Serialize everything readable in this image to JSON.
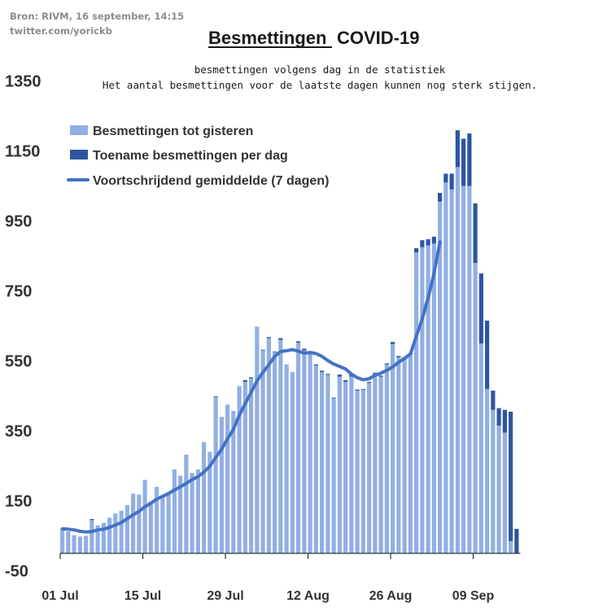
{
  "source": {
    "line1": "Bron: RIVM, 16 september, 14:15",
    "line2": "twitter.com/yorickb"
  },
  "chart_data": {
    "type": "bar",
    "title_part1": "Besmettingen",
    "title_part2": "COVID-19",
    "subtitle_line1": "besmettingen  volgens dag in de statistiek",
    "subtitle_line2": "Het aantal besmettingen  voor de laatste dagen kunnen nog sterk stijgen.",
    "ylim": [
      -50,
      1350
    ],
    "yticks": [
      -50,
      150,
      350,
      550,
      750,
      950,
      1150,
      1350
    ],
    "xticks": [
      {
        "label": "01 Jul",
        "index": 0
      },
      {
        "label": "15 Jul",
        "index": 14
      },
      {
        "label": "29 Jul",
        "index": 28
      },
      {
        "label": "12 Aug",
        "index": 42
      },
      {
        "label": "26 Aug",
        "index": 56
      },
      {
        "label": "09 Sep",
        "index": 70
      }
    ],
    "dates": [
      "01 Jul",
      "02 Jul",
      "03 Jul",
      "04 Jul",
      "05 Jul",
      "06 Jul",
      "07 Jul",
      "08 Jul",
      "09 Jul",
      "10 Jul",
      "11 Jul",
      "12 Jul",
      "13 Jul",
      "14 Jul",
      "15 Jul",
      "16 Jul",
      "17 Jul",
      "18 Jul",
      "19 Jul",
      "20 Jul",
      "21 Jul",
      "22 Jul",
      "23 Jul",
      "24 Jul",
      "25 Jul",
      "26 Jul",
      "27 Jul",
      "28 Jul",
      "29 Jul",
      "30 Jul",
      "31 Jul",
      "01 Aug",
      "02 Aug",
      "03 Aug",
      "04 Aug",
      "05 Aug",
      "06 Aug",
      "07 Aug",
      "08 Aug",
      "09 Aug",
      "10 Aug",
      "11 Aug",
      "12 Aug",
      "13 Aug",
      "14 Aug",
      "15 Aug",
      "16 Aug",
      "17 Aug",
      "18 Aug",
      "19 Aug",
      "20 Aug",
      "21 Aug",
      "22 Aug",
      "23 Aug",
      "24 Aug",
      "25 Aug",
      "26 Aug",
      "27 Aug",
      "28 Aug",
      "29 Aug",
      "30 Aug",
      "31 Aug",
      "01 Sep",
      "02 Sep",
      "03 Sep",
      "04 Sep",
      "05 Sep",
      "06 Sep",
      "07 Sep",
      "08 Sep",
      "09 Sep",
      "10 Sep",
      "11 Sep",
      "12 Sep",
      "13 Sep",
      "14 Sep",
      "15 Sep",
      "16 Sep"
    ],
    "series": [
      {
        "name": "Besmettingen tot gisteren",
        "color": "#92afe3",
        "values": [
          68,
          63,
          52,
          48,
          50,
          95,
          80,
          87,
          102,
          114,
          122,
          138,
          171,
          168,
          210,
          148,
          190,
          165,
          170,
          240,
          222,
          282,
          230,
          240,
          318,
          290,
          447,
          390,
          425,
          407,
          478,
          490,
          500,
          648,
          580,
          615,
          575,
          610,
          540,
          518,
          602,
          580,
          575,
          537,
          518,
          510,
          443,
          505,
          490,
          505,
          465,
          468,
          487,
          512,
          505,
          540,
          598,
          560,
          558,
          570,
          860,
          875,
          880,
          885,
          1005,
          1060,
          1040,
          1104,
          1050,
          1050,
          830,
          600,
          470,
          410,
          365,
          345,
          35,
          0
        ],
        "color_key": "light"
      },
      {
        "name": "Toename besmettingen per dag",
        "color": "#2e56a0",
        "values": [
          1,
          0,
          0,
          0,
          0,
          3,
          0,
          0,
          0,
          0,
          0,
          0,
          0,
          0,
          0,
          0,
          0,
          0,
          0,
          0,
          0,
          0,
          0,
          0,
          0,
          0,
          2,
          0,
          0,
          0,
          0,
          5,
          3,
          0,
          2,
          3,
          2,
          5,
          0,
          0,
          4,
          5,
          3,
          3,
          4,
          3,
          2,
          6,
          5,
          6,
          3,
          2,
          3,
          4,
          3,
          3,
          6,
          4,
          3,
          2,
          12,
          20,
          18,
          20,
          25,
          25,
          45,
          105,
          135,
          150,
          170,
          200,
          195,
          55,
          50,
          65,
          370,
          70
        ]
      },
      {
        "name": "Voortschrijdend gemiddelde (7 dagen)",
        "color": "#4472c4",
        "values": [
          70,
          69,
          67,
          63,
          61,
          62,
          67,
          69,
          74,
          81,
          88,
          99,
          110,
          120,
          133,
          143,
          155,
          163,
          171,
          181,
          190,
          200,
          211,
          219,
          232,
          249,
          274,
          298,
          327,
          355,
          395,
          428,
          460,
          493,
          517,
          539,
          563,
          577,
          579,
          582,
          578,
          572,
          574,
          571,
          563,
          551,
          541,
          534,
          527,
          512,
          502,
          496,
          499,
          509,
          515,
          523,
          533,
          546,
          557,
          570,
          620,
          670,
          730,
          800,
          890,
          null,
          null,
          null,
          null,
          null,
          null,
          null,
          null,
          null,
          null,
          null,
          null,
          null
        ]
      }
    ],
    "legend_position": "top-left",
    "grid": false
  }
}
